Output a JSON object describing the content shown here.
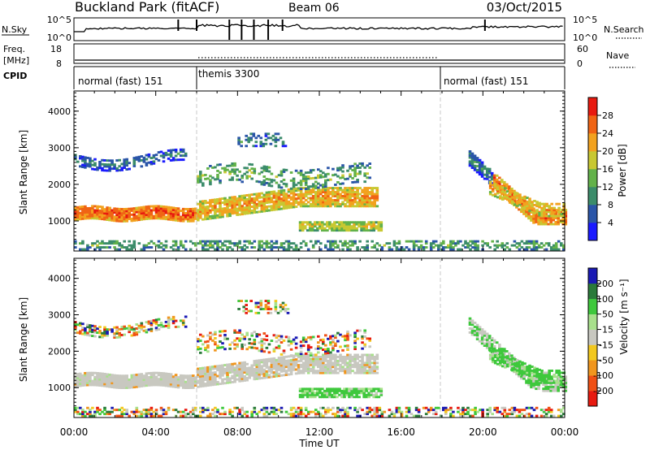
{
  "chart_data": {
    "type": "heatmap",
    "header": {
      "site": "Buckland Park (fitACF)",
      "beam": "Beam 06",
      "date": "03/Oct/2015"
    },
    "noise_panel": {
      "left_label": "N.Sky",
      "left_ticks": [
        "10^5",
        "10^0"
      ],
      "right_label": "N.Search",
      "right_ticks": [
        "10^5",
        "10^0"
      ]
    },
    "freq_panel": {
      "left_label_line1": "Freq.",
      "left_label_line2": "[MHz]",
      "left_ticks": [
        "18",
        "8"
      ],
      "right_label": "Nave",
      "right_ticks": [
        "60",
        "0"
      ]
    },
    "cpid_panel": {
      "label": "CPID",
      "segments": [
        {
          "label": "normal (fast) 151",
          "start_hour": 0,
          "end_hour": 6
        },
        {
          "label": "themis 3300",
          "start_hour": 6,
          "end_hour": 18
        },
        {
          "label": "normal (fast) 151",
          "start_hour": 18,
          "end_hour": 24
        }
      ]
    },
    "x": {
      "label": "Time UT",
      "range_hours": [
        0,
        24
      ],
      "ticks": [
        "00:00",
        "04:00",
        "08:00",
        "12:00",
        "16:00",
        "20:00",
        "00:00"
      ]
    },
    "y": {
      "label": "Slant Range [km]",
      "range_km": [
        180,
        4550
      ],
      "ticks": [
        "1000",
        "2000",
        "3000",
        "4000"
      ]
    },
    "power_panel": {
      "colorbar_label": "Power [dB]",
      "colorbar_ticks": [
        "4",
        "8",
        "12",
        "16",
        "20",
        "24",
        "28"
      ],
      "range_db": [
        0,
        32
      ],
      "colors": [
        "#1a1aff",
        "#2a55a8",
        "#3b8c6a",
        "#63b24a",
        "#c8c832",
        "#f2a21f",
        "#f06414",
        "#e81a10"
      ]
    },
    "velocity_panel": {
      "colorbar_label": "Velocity [m s⁻¹]",
      "colorbar_ticks": [
        "200",
        "100",
        "50",
        "15",
        "-15",
        "-50",
        "-100",
        "-200"
      ],
      "colors": [
        "#1a1ab4",
        "#2a7a3a",
        "#3ec83c",
        "#a8e08c",
        "#c8c8c0",
        "#f2c81e",
        "#f0961e",
        "#f05014",
        "#e81a10"
      ]
    },
    "echo_regions": [
      {
        "name": "near-range clutter",
        "t": [
          0,
          24
        ],
        "r": [
          200,
          500
        ],
        "power_db": 14,
        "velocity": "mixed"
      },
      {
        "name": "main ionospheric band",
        "t": [
          0,
          6
        ],
        "r": [
          1000,
          1500
        ],
        "power_db": 26,
        "velocity": "low"
      },
      {
        "name": "upper band",
        "t": [
          0,
          4.5
        ],
        "r": [
          2300,
          2900
        ],
        "power_db": 10,
        "velocity": "mixed"
      },
      {
        "name": "rising band",
        "t": [
          6,
          15
        ],
        "r": [
          1200,
          2000
        ],
        "power_db": 24,
        "velocity": "low"
      },
      {
        "name": "lower patch",
        "t": [
          11,
          15
        ],
        "r": [
          700,
          1000
        ],
        "power_db": 20,
        "velocity": "positive"
      },
      {
        "name": "descending band",
        "t": [
          19.5,
          24
        ],
        "r": [
          900,
          2700
        ],
        "power_db": 24,
        "velocity": "low/positive"
      }
    ]
  }
}
